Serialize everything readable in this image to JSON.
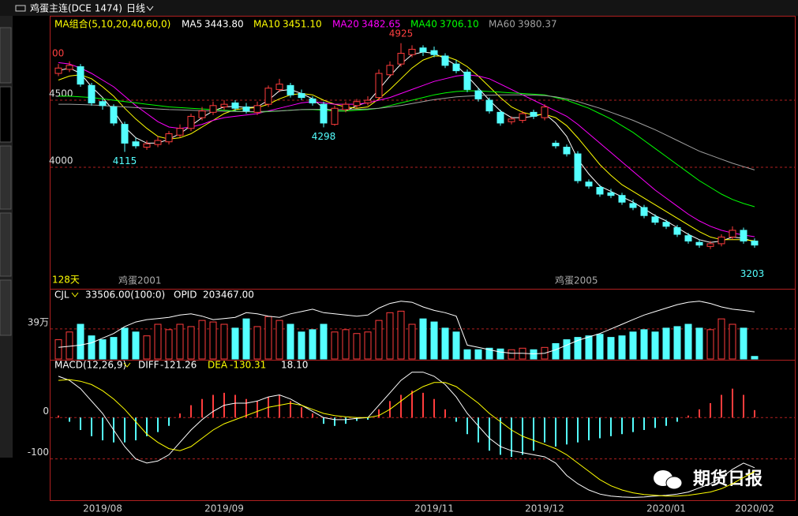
{
  "header": {
    "title": "鸡蛋主连(DCE 1474)",
    "period": "日线"
  },
  "watermark": "期货日报",
  "chart_data": [
    {
      "type": "candlestick",
      "legend_title": "MA组合(5,10,20,40,60,0)",
      "categories": [
        null,
        null,
        null,
        null,
        "2019/08",
        null,
        null,
        null,
        null,
        null,
        null,
        null,
        null,
        null,
        null,
        "2019/09",
        null,
        null,
        null,
        null,
        null,
        null,
        null,
        null,
        null,
        null,
        null,
        null,
        null,
        null,
        null,
        null,
        null,
        null,
        "2019/11",
        null,
        null,
        null,
        null,
        null,
        null,
        null,
        null,
        null,
        "2019/12",
        null,
        null,
        null,
        null,
        null,
        null,
        null,
        null,
        null,
        null,
        "2020/01",
        null,
        null,
        null,
        null,
        null,
        null,
        null,
        "2020/02"
      ],
      "open": [
        4700,
        4730,
        4750,
        4610,
        4490,
        4450,
        4320,
        4190,
        4150,
        4170,
        4190,
        4240,
        4290,
        4370,
        4410,
        4450,
        4480,
        4450,
        4410,
        4470,
        4580,
        4610,
        4550,
        4510,
        4470,
        4320,
        4430,
        4460,
        4480,
        4520,
        4690,
        4770,
        4840,
        4890,
        4870,
        4830,
        4770,
        4710,
        4570,
        4500,
        4410,
        4340,
        4350,
        4410,
        4370,
        4180,
        4150,
        4100,
        3890,
        3850,
        3810,
        3790,
        3730,
        3700,
        3630,
        3590,
        3550,
        3490,
        3440,
        3410,
        3430,
        3480,
        3530,
        3450
      ],
      "high": [
        4770,
        4790,
        4770,
        4630,
        4510,
        4470,
        4340,
        4220,
        4200,
        4230,
        4270,
        4320,
        4400,
        4450,
        4490,
        4500,
        4500,
        4480,
        4490,
        4610,
        4660,
        4630,
        4580,
        4530,
        4490,
        4460,
        4490,
        4510,
        4530,
        4730,
        4790,
        4925,
        4910,
        4910,
        4900,
        4850,
        4800,
        4730,
        4590,
        4520,
        4430,
        4380,
        4420,
        4430,
        4470,
        4200,
        4170,
        4120,
        3910,
        3870,
        3840,
        3810,
        3760,
        3720,
        3650,
        3610,
        3570,
        3510,
        3460,
        3450,
        3500,
        3560,
        3550,
        3470
      ],
      "low": [
        4680,
        4710,
        4600,
        4460,
        4430,
        4310,
        4115,
        4140,
        4130,
        4150,
        4170,
        4220,
        4270,
        4350,
        4390,
        4430,
        4420,
        4400,
        4390,
        4450,
        4560,
        4520,
        4500,
        4460,
        4298,
        4310,
        4410,
        4440,
        4460,
        4500,
        4670,
        4750,
        4820,
        4830,
        4820,
        4740,
        4700,
        4560,
        4490,
        4400,
        4310,
        4320,
        4330,
        4360,
        4350,
        4140,
        4080,
        3880,
        3840,
        3780,
        3770,
        3720,
        3680,
        3620,
        3570,
        3540,
        3480,
        3430,
        3400,
        3390,
        3410,
        3460,
        3430,
        3400
      ],
      "close": [
        4740,
        4760,
        4620,
        4480,
        4460,
        4330,
        4180,
        4160,
        4175,
        4200,
        4250,
        4290,
        4380,
        4420,
        4460,
        4470,
        4440,
        4420,
        4460,
        4590,
        4620,
        4540,
        4520,
        4480,
        4330,
        4440,
        4470,
        4490,
        4500,
        4700,
        4760,
        4850,
        4880,
        4860,
        4840,
        4760,
        4720,
        4580,
        4510,
        4420,
        4330,
        4360,
        4400,
        4380,
        4450,
        4160,
        4100,
        3900,
        3860,
        3800,
        3790,
        3740,
        3700,
        3640,
        3590,
        3560,
        3500,
        3450,
        3420,
        3430,
        3480,
        3530,
        3450,
        3420
      ],
      "up_color": "#ff3c3c",
      "down_color": "#54ffff",
      "series": [
        {
          "name": "MA5",
          "legend_value": "3443.80",
          "color": "#ffffff",
          "values": [
            4720,
            4740,
            4700,
            4600,
            4520,
            4420,
            4300,
            4220,
            4180,
            4180,
            4210,
            4250,
            4310,
            4370,
            4420,
            4450,
            4455,
            4445,
            4450,
            4500,
            4570,
            4580,
            4550,
            4510,
            4440,
            4420,
            4420,
            4460,
            4485,
            4580,
            4680,
            4770,
            4840,
            4860,
            4850,
            4810,
            4760,
            4680,
            4590,
            4500,
            4420,
            4370,
            4370,
            4380,
            4400,
            4330,
            4230,
            4060,
            3950,
            3860,
            3820,
            3780,
            3740,
            3690,
            3640,
            3600,
            3550,
            3500,
            3460,
            3440,
            3450,
            3480,
            3470,
            3443.8
          ]
        },
        {
          "name": "MA10",
          "legend_value": "3451.10",
          "color": "#ffff00",
          "values": [
            4650,
            4680,
            4690,
            4660,
            4600,
            4530,
            4440,
            4360,
            4290,
            4230,
            4210,
            4220,
            4250,
            4300,
            4350,
            4400,
            4430,
            4440,
            4445,
            4470,
            4510,
            4540,
            4550,
            4540,
            4500,
            4470,
            4450,
            4440,
            4450,
            4510,
            4580,
            4660,
            4740,
            4800,
            4830,
            4830,
            4800,
            4750,
            4680,
            4600,
            4520,
            4450,
            4410,
            4390,
            4395,
            4370,
            4310,
            4220,
            4120,
            4020,
            3940,
            3870,
            3820,
            3770,
            3720,
            3670,
            3620,
            3570,
            3520,
            3480,
            3460,
            3460,
            3460,
            3451.1
          ]
        },
        {
          "name": "MA20",
          "legend_value": "3482.65",
          "color": "#ff00ff",
          "values": [
            4780,
            4770,
            4740,
            4700,
            4650,
            4600,
            4530,
            4460,
            4400,
            4340,
            4300,
            4290,
            4300,
            4320,
            4350,
            4370,
            4380,
            4390,
            4400,
            4420,
            4440,
            4460,
            4480,
            4490,
            4480,
            4470,
            4470,
            4470,
            4480,
            4500,
            4520,
            4550,
            4580,
            4610,
            4640,
            4660,
            4680,
            4690,
            4680,
            4660,
            4620,
            4580,
            4540,
            4500,
            4460,
            4420,
            4380,
            4320,
            4250,
            4180,
            4110,
            4040,
            3970,
            3900,
            3830,
            3770,
            3710,
            3650,
            3600,
            3560,
            3530,
            3510,
            3495,
            3482.65
          ]
        },
        {
          "name": "MA40",
          "legend_value": "3706.10",
          "color": "#00ff00",
          "values": [
            4530,
            4530,
            4525,
            4520,
            4510,
            4500,
            4490,
            4480,
            4470,
            4460,
            4450,
            4445,
            4440,
            4435,
            4430,
            4425,
            4420,
            4415,
            4410,
            4415,
            4420,
            4425,
            4430,
            4430,
            4425,
            4420,
            4420,
            4425,
            4430,
            4440,
            4460,
            4480,
            4500,
            4520,
            4540,
            4555,
            4565,
            4570,
            4570,
            4565,
            4560,
            4555,
            4550,
            4545,
            4540,
            4520,
            4500,
            4470,
            4440,
            4400,
            4360,
            4310,
            4260,
            4200,
            4140,
            4080,
            4020,
            3960,
            3900,
            3850,
            3800,
            3760,
            3730,
            3706.1
          ]
        },
        {
          "name": "MA60",
          "legend_value": "3980.37",
          "color": "#a0a0a0",
          "values": [
            4470,
            4470,
            4468,
            4465,
            4460,
            4455,
            4450,
            4445,
            4440,
            4435,
            4430,
            4428,
            4425,
            4422,
            4420,
            4418,
            4416,
            4415,
            4415,
            4418,
            4420,
            4425,
            4430,
            4432,
            4432,
            4430,
            4430,
            4432,
            4435,
            4440,
            4450,
            4460,
            4475,
            4490,
            4505,
            4515,
            4525,
            4530,
            4535,
            4538,
            4540,
            4540,
            4540,
            4538,
            4535,
            4525,
            4510,
            4490,
            4465,
            4440,
            4410,
            4380,
            4350,
            4315,
            4280,
            4240,
            4200,
            4160,
            4120,
            4090,
            4060,
            4030,
            4005,
            3980.37
          ]
        }
      ],
      "ylim": [
        3100,
        5118
      ],
      "yticks": [
        4000,
        4500
      ],
      "grid": true,
      "annotations": [
        "00",
        "128天",
        "鸡蛋2001",
        "鸡蛋2005"
      ],
      "price_marker": 3203
    },
    {
      "type": "bar",
      "series": [
        {
          "name": "CJL",
          "legend_value": "33506.00(100:0)",
          "values": [
            25,
            35,
            45,
            30,
            25,
            28,
            40,
            35,
            30,
            45,
            38,
            45,
            42,
            50,
            48,
            45,
            40,
            52,
            42,
            55,
            50,
            45,
            35,
            38,
            45,
            35,
            38,
            33,
            35,
            50,
            60,
            62,
            45,
            52,
            48,
            40,
            35,
            12,
            12,
            14,
            13,
            12,
            14,
            12,
            15,
            20,
            25,
            28,
            30,
            32,
            28,
            30,
            35,
            38,
            35,
            40,
            42,
            45,
            40,
            38,
            52,
            45,
            40,
            3.35
          ]
        },
        {
          "name": "OPID",
          "legend_value": "203467.00",
          "axis": "y2",
          "color": "#ffffff",
          "values": [
            50000,
            55000,
            60000,
            70000,
            90000,
            110000,
            140000,
            160000,
            170000,
            175000,
            180000,
            190000,
            195000,
            185000,
            170000,
            175000,
            180000,
            200000,
            195000,
            185000,
            180000,
            195000,
            205000,
            215000,
            200000,
            195000,
            190000,
            185000,
            190000,
            220000,
            240000,
            250000,
            245000,
            225000,
            210000,
            200000,
            185000,
            60000,
            50000,
            40000,
            30000,
            25000,
            25000,
            22000,
            25000,
            40000,
            60000,
            80000,
            95000,
            110000,
            130000,
            150000,
            170000,
            190000,
            205000,
            220000,
            235000,
            245000,
            250000,
            240000,
            225000,
            215000,
            210000,
            203467
          ]
        }
      ],
      "ylim": [
        0,
        90
      ],
      "yticks": [
        {
          "value": 39,
          "label": "39万"
        }
      ],
      "y2lim": [
        0,
        300000
      ],
      "grid": true
    },
    {
      "type": "macd",
      "legend_title": "MACD(12,26,9)",
      "series": [
        {
          "name": "DIFF",
          "legend_value": "-121.26",
          "color": "#ffffff",
          "values": [
            100,
            90,
            70,
            40,
            10,
            -30,
            -70,
            -100,
            -110,
            -105,
            -90,
            -60,
            -30,
            -5,
            15,
            30,
            35,
            35,
            40,
            50,
            55,
            45,
            30,
            15,
            0,
            -5,
            -5,
            -2,
            0,
            30,
            60,
            90,
            110,
            110,
            100,
            80,
            50,
            10,
            -20,
            -50,
            -70,
            -80,
            -85,
            -90,
            -95,
            -110,
            -140,
            -160,
            -175,
            -185,
            -190,
            -192,
            -193,
            -192,
            -190,
            -188,
            -185,
            -180,
            -170,
            -160,
            -145,
            -125,
            -110,
            -121.26
          ]
        },
        {
          "name": "DEA",
          "legend_value": "-130.31",
          "color": "#ffff00",
          "values": [
            90,
            92,
            88,
            80,
            65,
            45,
            20,
            -10,
            -40,
            -60,
            -75,
            -80,
            -70,
            -50,
            -30,
            -15,
            -5,
            5,
            15,
            25,
            30,
            35,
            30,
            20,
            10,
            5,
            2,
            0,
            0,
            5,
            20,
            40,
            60,
            75,
            85,
            85,
            75,
            55,
            35,
            10,
            -10,
            -30,
            -45,
            -55,
            -65,
            -75,
            -90,
            -110,
            -130,
            -150,
            -165,
            -175,
            -182,
            -186,
            -188,
            -190,
            -190,
            -188,
            -184,
            -180,
            -172,
            -160,
            -145,
            -130.31
          ]
        },
        {
          "name": "MACD",
          "legend_value": "18.10",
          "values": [
            5,
            -10,
            -30,
            -45,
            -55,
            -60,
            -60,
            -55,
            -45,
            -35,
            -20,
            10,
            30,
            45,
            55,
            60,
            55,
            45,
            40,
            50,
            55,
            40,
            25,
            10,
            -15,
            -20,
            -15,
            -8,
            -5,
            20,
            40,
            55,
            65,
            60,
            45,
            20,
            -10,
            -40,
            -60,
            -80,
            -90,
            -95,
            -90,
            -80,
            -60,
            -70,
            -65,
            -60,
            -55,
            -50,
            -45,
            -40,
            -35,
            -30,
            -25,
            -20,
            -10,
            5,
            20,
            35,
            55,
            70,
            55,
            18.1
          ]
        }
      ],
      "ylim": [
        -198,
        138
      ],
      "yticks": [
        -100,
        0
      ],
      "grid": true
    }
  ]
}
